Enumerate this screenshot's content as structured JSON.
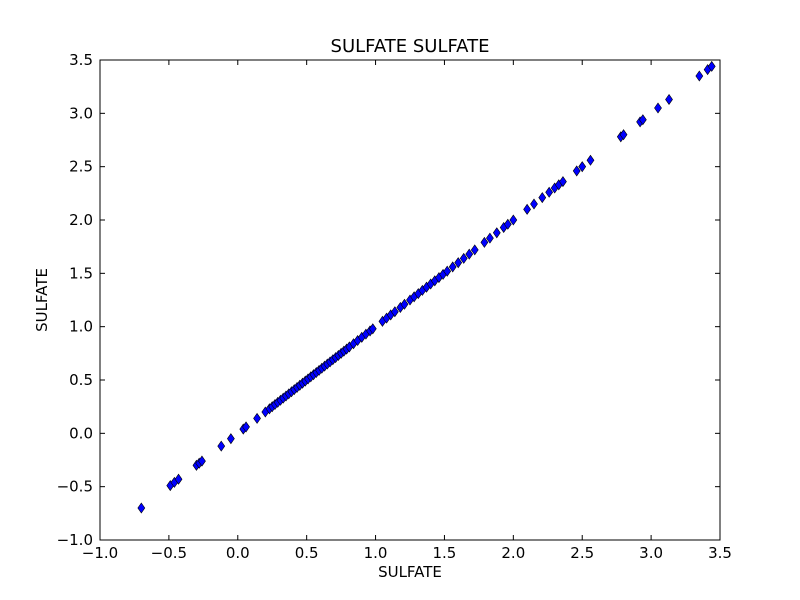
{
  "chart_data": {
    "type": "scatter",
    "title": "SULFATE SULFATE",
    "xlabel": "SULFATE",
    "ylabel": "SULFATE",
    "xlim": [
      -1.0,
      3.5
    ],
    "ylim": [
      -1.0,
      3.5
    ],
    "xticks": [
      "−1.0",
      "−0.5",
      "0.0",
      "0.5",
      "1.0",
      "1.5",
      "2.0",
      "2.5",
      "3.0",
      "3.5"
    ],
    "yticks": [
      "−1.0",
      "−0.5",
      "0.0",
      "0.5",
      "1.0",
      "1.5",
      "2.0",
      "2.5",
      "3.0",
      "3.5"
    ],
    "grid": false,
    "marker": "diamond",
    "marker_color": "#0000ff",
    "series": [
      {
        "x": [
          -0.7,
          -0.49,
          -0.46,
          -0.43,
          -0.3,
          -0.28,
          -0.26,
          -0.12,
          -0.05,
          0.04,
          0.06,
          0.14,
          0.2,
          0.23,
          0.25,
          0.27,
          0.29,
          0.31,
          0.33,
          0.35,
          0.37,
          0.39,
          0.41,
          0.43,
          0.45,
          0.47,
          0.49,
          0.51,
          0.53,
          0.55,
          0.57,
          0.59,
          0.61,
          0.63,
          0.65,
          0.67,
          0.69,
          0.71,
          0.73,
          0.75,
          0.77,
          0.79,
          0.81,
          0.84,
          0.87,
          0.9,
          0.93,
          0.96,
          0.98,
          1.05,
          1.08,
          1.11,
          1.14,
          1.18,
          1.21,
          1.25,
          1.28,
          1.31,
          1.34,
          1.37,
          1.4,
          1.43,
          1.46,
          1.49,
          1.52,
          1.56,
          1.6,
          1.64,
          1.68,
          1.72,
          1.79,
          1.83,
          1.88,
          1.93,
          1.96,
          2.0,
          2.1,
          2.15,
          2.21,
          2.26,
          2.3,
          2.33,
          2.36,
          2.46,
          2.5,
          2.56,
          2.78,
          2.8,
          2.92,
          2.94,
          3.05,
          3.13,
          3.35,
          3.41,
          3.44
        ],
        "y": [
          -0.7,
          -0.49,
          -0.46,
          -0.43,
          -0.3,
          -0.28,
          -0.26,
          -0.12,
          -0.05,
          0.04,
          0.06,
          0.14,
          0.2,
          0.23,
          0.25,
          0.27,
          0.29,
          0.31,
          0.33,
          0.35,
          0.37,
          0.39,
          0.41,
          0.43,
          0.45,
          0.47,
          0.49,
          0.51,
          0.53,
          0.55,
          0.57,
          0.59,
          0.61,
          0.63,
          0.65,
          0.67,
          0.69,
          0.71,
          0.73,
          0.75,
          0.77,
          0.79,
          0.81,
          0.84,
          0.87,
          0.9,
          0.93,
          0.96,
          0.98,
          1.05,
          1.08,
          1.11,
          1.14,
          1.18,
          1.21,
          1.25,
          1.28,
          1.31,
          1.34,
          1.37,
          1.4,
          1.43,
          1.46,
          1.49,
          1.52,
          1.56,
          1.6,
          1.64,
          1.68,
          1.72,
          1.79,
          1.83,
          1.88,
          1.93,
          1.96,
          2.0,
          2.1,
          2.15,
          2.21,
          2.26,
          2.3,
          2.33,
          2.36,
          2.46,
          2.5,
          2.56,
          2.78,
          2.8,
          2.92,
          2.94,
          3.05,
          3.13,
          3.35,
          3.41,
          3.44
        ]
      }
    ]
  }
}
